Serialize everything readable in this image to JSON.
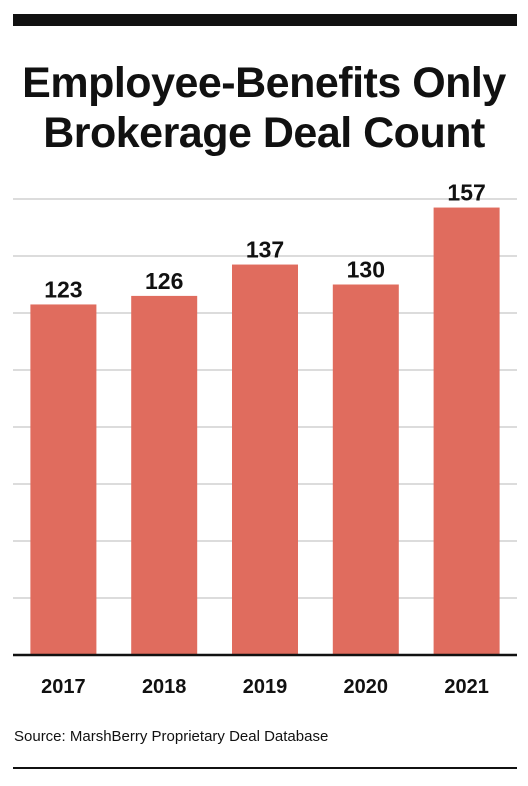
{
  "title_lines": [
    "Employee-Benefits Only",
    "Brokerage Deal Count"
  ],
  "source": "Source: MarshBerry Proprietary Deal Database",
  "colors": {
    "bar": "#e06c5e",
    "grid": "#c8c8c8",
    "axis": "#111111",
    "text": "#111111"
  },
  "chart_data": {
    "type": "bar",
    "title": "Employee-Benefits Only Brokerage Deal Count",
    "categories": [
      "2017",
      "2018",
      "2019",
      "2020",
      "2021"
    ],
    "values": [
      123,
      126,
      137,
      130,
      157
    ],
    "xlabel": "",
    "ylabel": "",
    "ylim": [
      0,
      160
    ],
    "grid": true,
    "data_labels": true
  }
}
